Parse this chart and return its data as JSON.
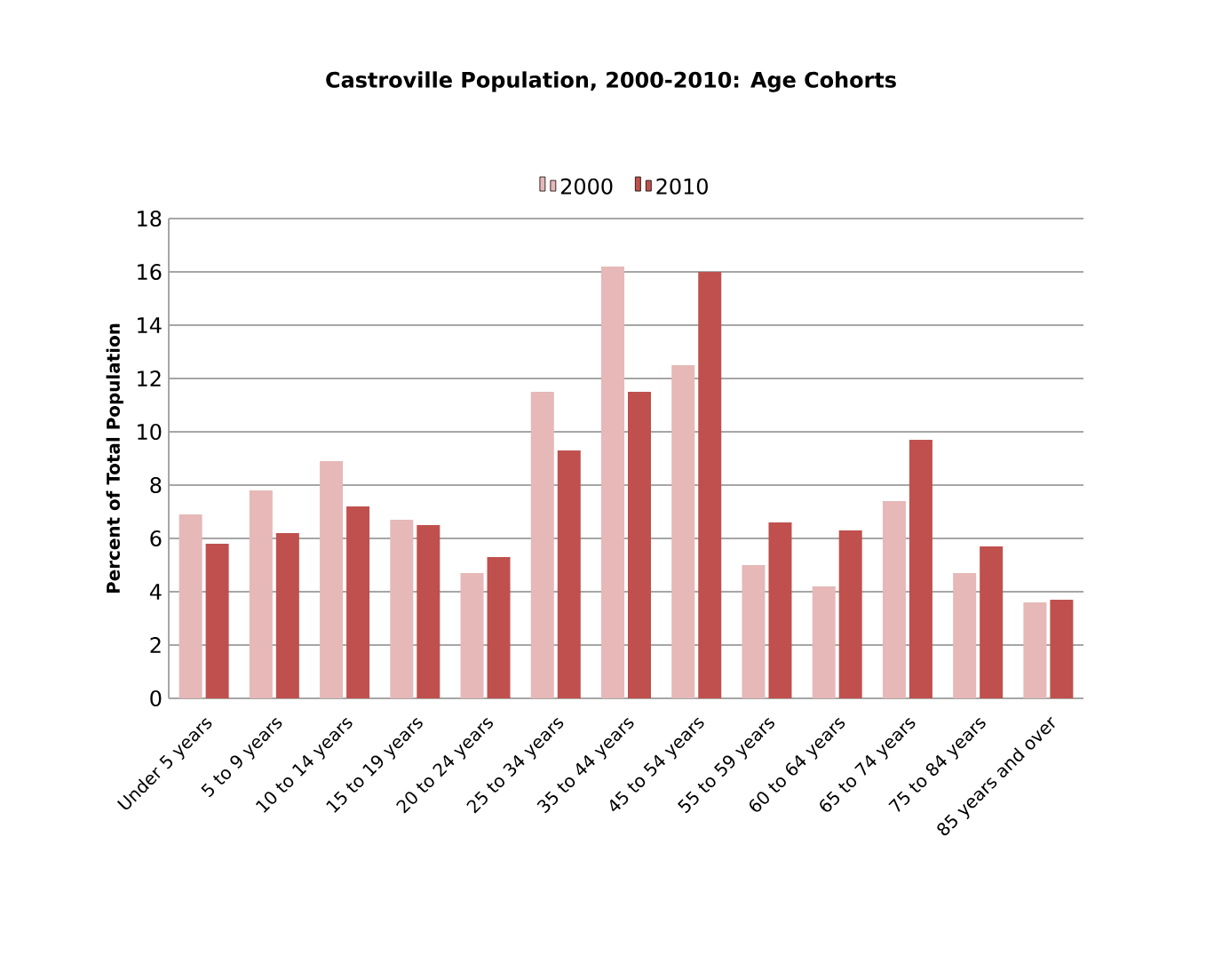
{
  "chart_data": {
    "type": "bar",
    "title": "Castroville Population, 2000-2010: Age Cohorts",
    "ylabel": "Percent of Total Population",
    "categories": [
      "Under 5 years",
      "5 to 9 years",
      "10 to 14 years",
      "15 to 19 years",
      "20 to 24 years",
      "25 to 34 years",
      "35 to 44 years",
      "45 to 54 years",
      "55 to 59 years",
      "60 to 64 years",
      "65 to 74 years",
      "75 to 84 years",
      "85 years and over"
    ],
    "series": [
      {
        "name": "2000",
        "color": "#e6b8b7",
        "values": [
          6.9,
          7.8,
          8.9,
          6.7,
          4.7,
          11.5,
          16.2,
          12.5,
          5.0,
          4.2,
          7.4,
          4.7,
          3.6
        ]
      },
      {
        "name": "2010",
        "color": "#c0504d",
        "values": [
          5.8,
          6.2,
          7.2,
          6.5,
          5.3,
          9.3,
          11.5,
          16.0,
          6.6,
          6.3,
          9.7,
          5.7,
          3.7
        ]
      }
    ],
    "ylim": [
      0,
      18
    ],
    "yticks": [
      0,
      2,
      4,
      6,
      8,
      10,
      12,
      14,
      16,
      18
    ],
    "grid": "y",
    "legend": "top"
  }
}
